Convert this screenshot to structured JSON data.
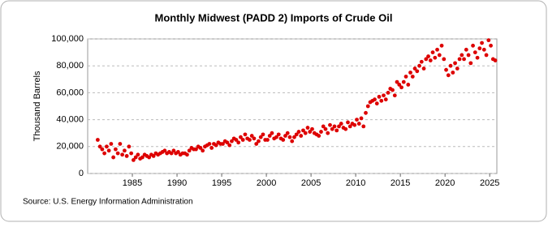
{
  "chart_data": {
    "type": "scatter",
    "title": "Monthly Midwest (PADD 2) Imports of Crude Oil",
    "y_label": "Thousand Barrels",
    "source": "Source: U.S. Energy Information Administration",
    "color": "#dd0000",
    "grid": true,
    "xlim": [
      1980,
      2025.8
    ],
    "xticks": [
      1985,
      1990,
      1995,
      2000,
      2005,
      2010,
      2015,
      2020,
      2025
    ],
    "ylim": [
      0,
      100000
    ],
    "yticks": [
      0,
      {
        "value": 20000,
        "label": "20,000"
      },
      {
        "value": 40000,
        "label": "40,000"
      },
      {
        "value": 60000,
        "label": "60,000"
      },
      {
        "value": 80000,
        "label": "80,000"
      },
      {
        "value": 100000,
        "label": "100,000"
      }
    ],
    "x": [
      1981.125,
      1981.375,
      1981.625,
      1981.875,
      1982.125,
      1982.375,
      1982.625,
      1982.875,
      1983.125,
      1983.375,
      1983.625,
      1983.875,
      1984.125,
      1984.375,
      1984.625,
      1984.875,
      1985.125,
      1985.375,
      1985.625,
      1985.875,
      1986.125,
      1986.375,
      1986.625,
      1986.875,
      1987.125,
      1987.375,
      1987.625,
      1987.875,
      1988.125,
      1988.375,
      1988.625,
      1988.875,
      1989.125,
      1989.375,
      1989.625,
      1989.875,
      1990.125,
      1990.375,
      1990.625,
      1990.875,
      1991.125,
      1991.375,
      1991.625,
      1991.875,
      1992.125,
      1992.375,
      1992.625,
      1992.875,
      1993.125,
      1993.375,
      1993.625,
      1993.875,
      1994.125,
      1994.375,
      1994.625,
      1994.875,
      1995.125,
      1995.375,
      1995.625,
      1995.875,
      1996.125,
      1996.375,
      1996.625,
      1996.875,
      1997.125,
      1997.375,
      1997.625,
      1997.875,
      1998.125,
      1998.375,
      1998.625,
      1998.875,
      1999.125,
      1999.375,
      1999.625,
      1999.875,
      2000.125,
      2000.375,
      2000.625,
      2000.875,
      2001.125,
      2001.375,
      2001.625,
      2001.875,
      2002.125,
      2002.375,
      2002.625,
      2002.875,
      2003.125,
      2003.375,
      2003.625,
      2003.875,
      2004.125,
      2004.375,
      2004.625,
      2004.875,
      2005.125,
      2005.375,
      2005.625,
      2005.875,
      2006.125,
      2006.375,
      2006.625,
      2006.875,
      2007.125,
      2007.375,
      2007.625,
      2007.875,
      2008.125,
      2008.375,
      2008.625,
      2008.875,
      2009.125,
      2009.375,
      2009.625,
      2009.875,
      2010.125,
      2010.375,
      2010.625,
      2010.875,
      2011.125,
      2011.375,
      2011.625,
      2011.875,
      2012.125,
      2012.375,
      2012.625,
      2012.875,
      2013.125,
      2013.375,
      2013.625,
      2013.875,
      2014.125,
      2014.375,
      2014.625,
      2014.875,
      2015.125,
      2015.375,
      2015.625,
      2015.875,
      2016.125,
      2016.375,
      2016.625,
      2016.875,
      2017.125,
      2017.375,
      2017.625,
      2017.875,
      2018.125,
      2018.375,
      2018.625,
      2018.875,
      2019.125,
      2019.375,
      2019.625,
      2019.875,
      2020.125,
      2020.375,
      2020.625,
      2020.875,
      2021.125,
      2021.375,
      2021.625,
      2021.875,
      2022.125,
      2022.375,
      2022.625,
      2022.875,
      2023.125,
      2023.375,
      2023.625,
      2023.875,
      2024.125,
      2024.375,
      2024.625,
      2024.875,
      2025.125,
      2025.375,
      2025.625
    ],
    "values": [
      25000,
      20000,
      18000,
      15000,
      20000,
      17000,
      22000,
      12000,
      18000,
      15000,
      22000,
      14000,
      17000,
      13000,
      20000,
      15000,
      10000,
      12000,
      14000,
      11000,
      12000,
      14000,
      13000,
      12000,
      14000,
      13000,
      15000,
      14000,
      15000,
      16000,
      17000,
      15000,
      16000,
      15000,
      17000,
      15000,
      16000,
      14000,
      15000,
      15000,
      14000,
      17000,
      19000,
      18000,
      18000,
      20000,
      19000,
      17000,
      20000,
      21000,
      22000,
      19000,
      22000,
      21000,
      23000,
      22000,
      22000,
      24000,
      23000,
      21000,
      24000,
      26000,
      25000,
      23000,
      27000,
      25000,
      29000,
      26000,
      25000,
      28000,
      26000,
      22000,
      24000,
      27000,
      29000,
      25000,
      25000,
      28000,
      30000,
      26000,
      27000,
      29000,
      26000,
      25000,
      28000,
      30000,
      27000,
      24000,
      27000,
      29000,
      31000,
      28000,
      32000,
      30000,
      34000,
      31000,
      33000,
      30000,
      29000,
      28000,
      31000,
      35000,
      33000,
      30000,
      36000,
      33000,
      35000,
      32000,
      35000,
      37000,
      34000,
      33000,
      38000,
      35000,
      37000,
      36000,
      40000,
      37000,
      41000,
      35000,
      45000,
      50000,
      53000,
      54000,
      55000,
      52000,
      57000,
      54000,
      58000,
      55000,
      60000,
      63000,
      62000,
      58000,
      68000,
      66000,
      64000,
      68000,
      72000,
      66000,
      75000,
      72000,
      78000,
      76000,
      80000,
      83000,
      78000,
      85000,
      87000,
      84000,
      90000,
      86000,
      92000,
      88000,
      95000,
      85000,
      77000,
      73000,
      80000,
      75000,
      82000,
      78000,
      85000,
      88000,
      85000,
      92000,
      88000,
      82000,
      95000,
      90000,
      86000,
      93000,
      97000,
      92000,
      88000,
      99000,
      95000,
      85000,
      84000
    ]
  }
}
